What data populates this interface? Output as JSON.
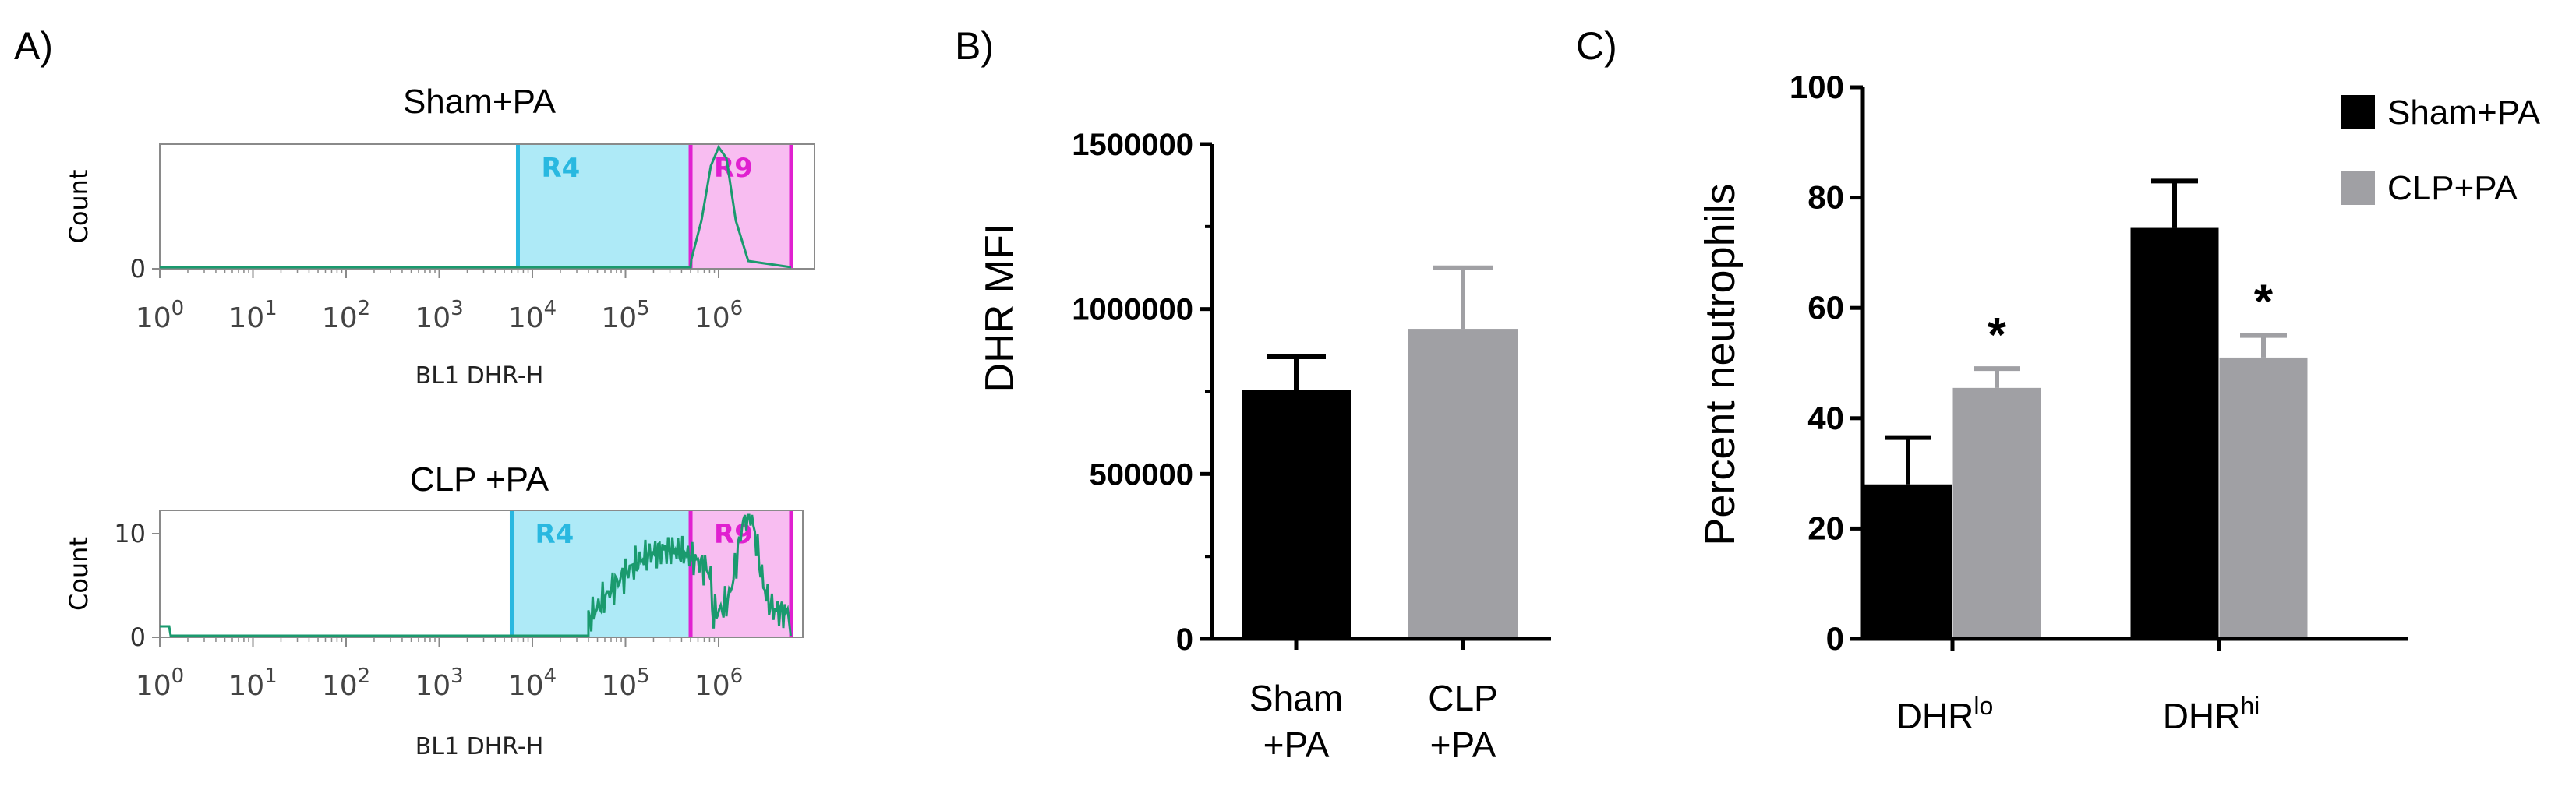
{
  "chart_data": [
    {
      "panel": "A)",
      "type": "area",
      "subplots": [
        {
          "title": "Sham+PA",
          "ylabel": "Count",
          "y_ticks": [
            "0"
          ],
          "xlabel": "BL1 DHR-H",
          "x_ticks": [
            {
              "base": "10",
              "exp": "0"
            },
            {
              "base": "10",
              "exp": "1"
            },
            {
              "base": "10",
              "exp": "2"
            },
            {
              "base": "10",
              "exp": "3"
            },
            {
              "base": "10",
              "exp": "4"
            },
            {
              "base": "10",
              "exp": "5"
            },
            {
              "base": "10",
              "exp": "6"
            }
          ],
          "x_scale": "log",
          "gates": [
            {
              "label": "R4",
              "from": 7000,
              "to": 500000,
              "fill": "#aeeaf7",
              "line": "#29b8e0"
            },
            {
              "label": "R9",
              "from": 500000,
              "to": 6000000,
              "fill": "#f8bdf1",
              "line": "#e020d0"
            }
          ],
          "histogram_peak_x": 1000000
        },
        {
          "title": "CLP +PA",
          "ylabel": "Count",
          "y_ticks": [
            "0",
            "10"
          ],
          "xlabel": "BL1 DHR-H",
          "x_ticks": [
            {
              "base": "10",
              "exp": "0"
            },
            {
              "base": "10",
              "exp": "1"
            },
            {
              "base": "10",
              "exp": "2"
            },
            {
              "base": "10",
              "exp": "3"
            },
            {
              "base": "10",
              "exp": "4"
            },
            {
              "base": "10",
              "exp": "5"
            },
            {
              "base": "10",
              "exp": "6"
            }
          ],
          "x_scale": "log",
          "gates": [
            {
              "label": "R4",
              "from": 6000,
              "to": 500000,
              "fill": "#aeeaf7",
              "line": "#29b8e0"
            },
            {
              "label": "R9",
              "from": 500000,
              "to": 6000000,
              "fill": "#f8bdf1",
              "line": "#e020d0"
            }
          ],
          "histogram_peak_x": 2000000
        }
      ],
      "trace_color": "#1a9a6e"
    },
    {
      "panel": "B)",
      "type": "bar",
      "ylabel": "DHR MFI",
      "ylim": [
        0,
        1500000
      ],
      "y_ticks": [
        "0",
        "500000",
        "1000000",
        "1500000"
      ],
      "categories": [
        [
          "Sham",
          "+PA"
        ],
        [
          "CLP",
          "+PA"
        ]
      ],
      "values": [
        755000,
        940000
      ],
      "errors": [
        100000,
        185000
      ],
      "colors": [
        "#000000",
        "#a0a0a4"
      ]
    },
    {
      "panel": "C)",
      "type": "bar",
      "ylabel": "Percent neutrophils",
      "ylim": [
        0,
        100
      ],
      "y_ticks": [
        "0",
        "20",
        "40",
        "60",
        "80",
        "100"
      ],
      "categories": [
        {
          "base": "DHR",
          "sup": "lo"
        },
        {
          "base": "DHR",
          "sup": "hi"
        }
      ],
      "series": [
        {
          "name": "Sham+PA",
          "values": [
            28,
            74.5
          ],
          "errors": [
            8.5,
            8.5
          ],
          "color": "#000000"
        },
        {
          "name": "CLP+PA",
          "values": [
            45.5,
            51
          ],
          "errors": [
            3.5,
            4
          ],
          "color": "#a0a0a4"
        }
      ],
      "significance": [
        "",
        "*"
      ],
      "significance_cat": [
        [
          "",
          "*"
        ],
        [
          "",
          "*"
        ]
      ],
      "legend_position": "top-right"
    }
  ]
}
